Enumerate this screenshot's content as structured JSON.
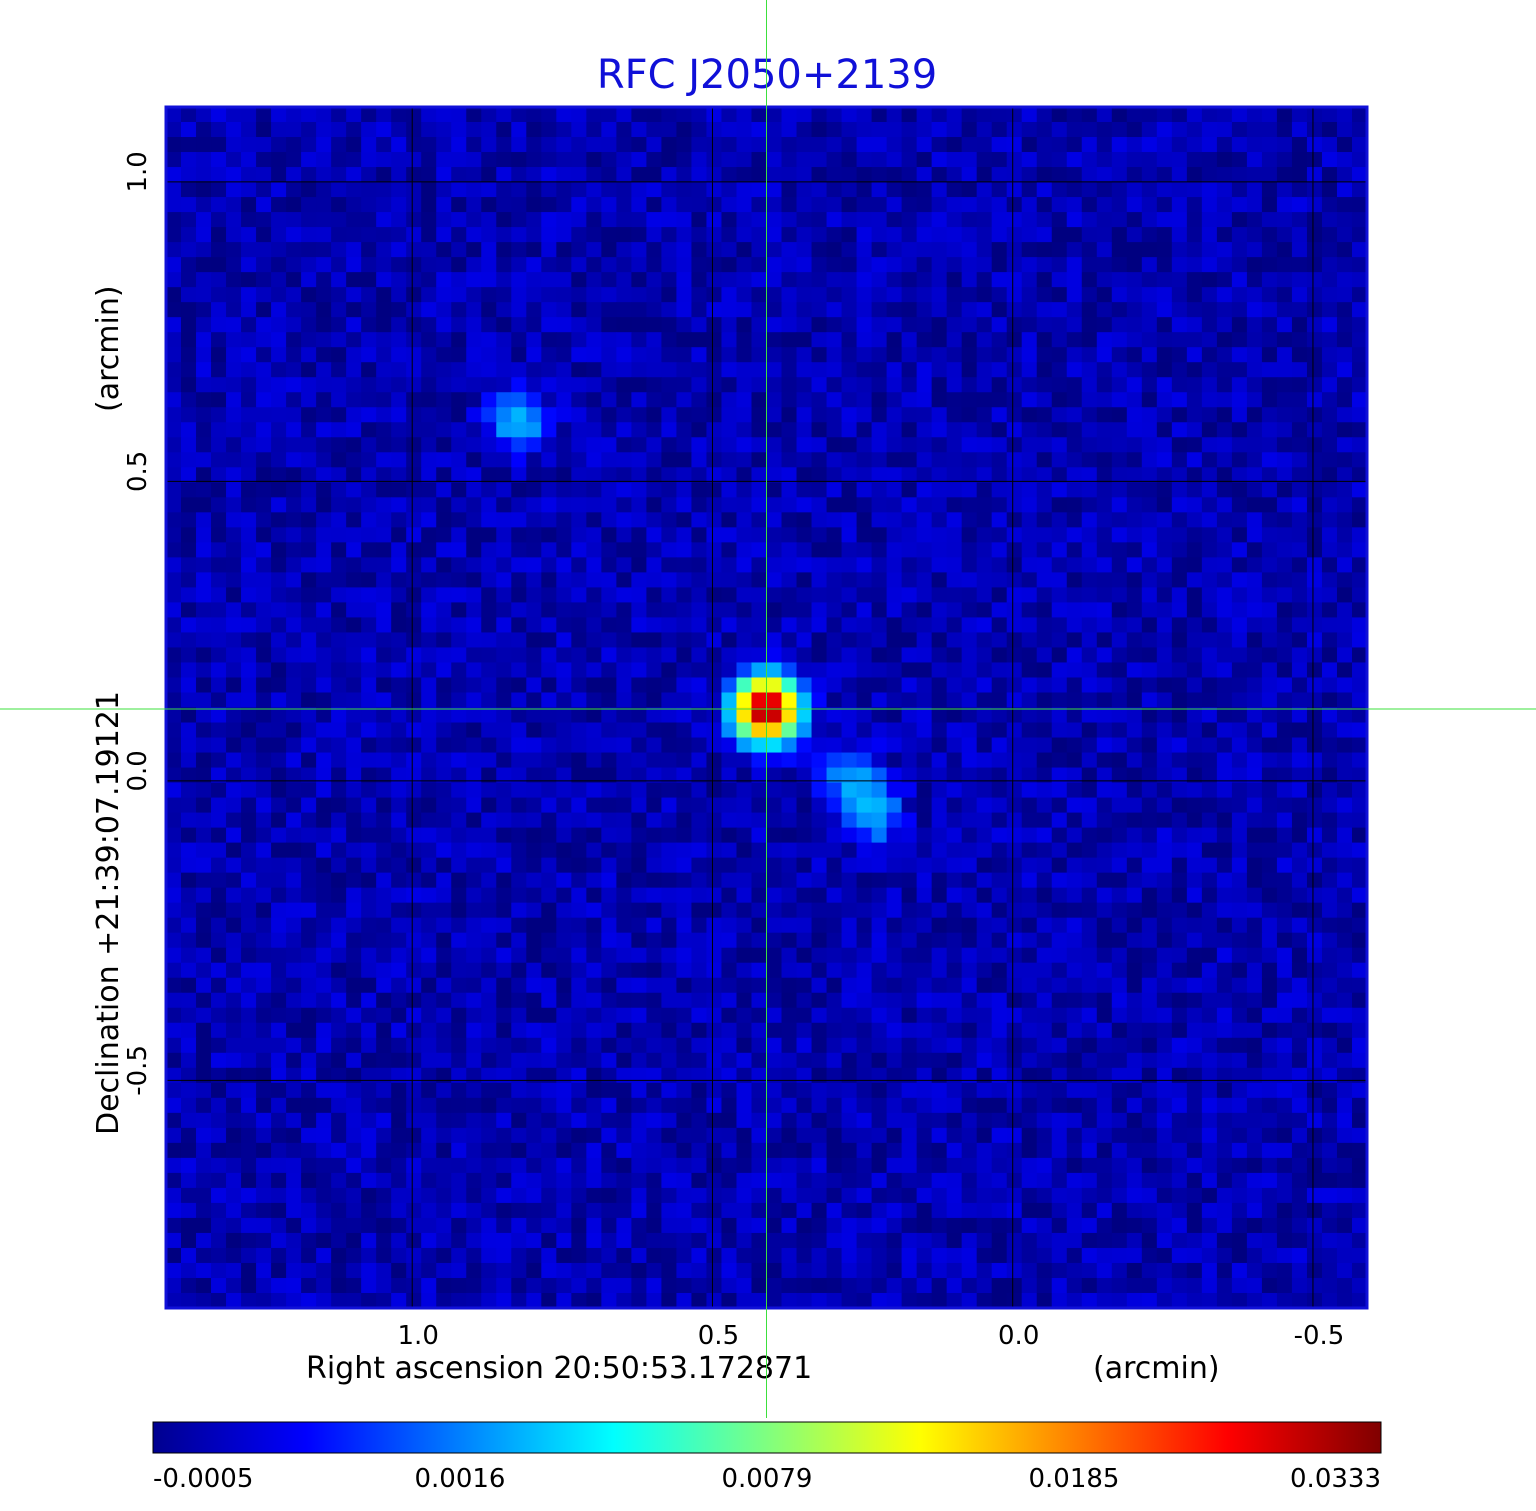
{
  "chart_data": {
    "type": "heatmap",
    "title": "RFC J2050+2139",
    "xlabel": "Right ascension  20:50:53.172871",
    "x_unit": "(arcmin)",
    "ylabel": "Declination  +21:39:07.19121",
    "y_unit": "(arcmin)",
    "xlim": [
      1.41,
      -0.59
    ],
    "ylim": [
      -0.88,
      1.125
    ],
    "x_ticks": [
      1.0,
      0.5,
      0.0,
      -0.5
    ],
    "x_tick_labels": [
      "1.0",
      "0.5",
      "0.0",
      "-0.5"
    ],
    "y_ticks": [
      1.0,
      0.5,
      0.0,
      -0.5
    ],
    "y_tick_labels": [
      "1.0",
      "0.5",
      "0.0",
      "-0.5"
    ],
    "grid": true,
    "crosshair": {
      "x": 0.41,
      "y": 0.12
    },
    "colormap": "jet",
    "colorbar": {
      "ticks": [
        -0.0005,
        0.0016,
        0.0079,
        0.0185,
        0.0333
      ],
      "tick_labels": [
        "-0.0005",
        "0.0016",
        "0.0079",
        "0.0185",
        "0.0333"
      ],
      "placement": "bottom"
    },
    "sources": [
      {
        "x": 0.41,
        "y": 0.12,
        "peak": 0.0333
      },
      {
        "x": 0.825,
        "y": 0.6,
        "peak": 0.003
      },
      {
        "x": 0.27,
        "y": 0.005,
        "peak": 0.0025
      },
      {
        "x": 0.235,
        "y": -0.055,
        "peak": 0.0028
      }
    ],
    "noise_level": -0.0001
  },
  "colors": {
    "title": "#1010d8",
    "grid": "#000000",
    "crosshair": "#3ce03c",
    "frame": "#1010d8"
  }
}
